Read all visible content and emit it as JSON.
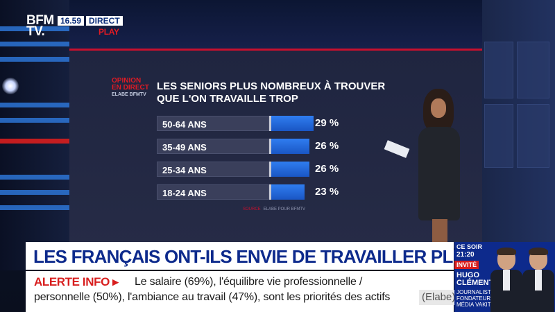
{
  "channel": {
    "logo_line1": "BFM",
    "logo_line2": "TV.",
    "time": "16.59",
    "live_label": "DIRECT",
    "play_label": "PLAY"
  },
  "graphic": {
    "tag_line1": "OPINION",
    "tag_line2": "EN DIRECT",
    "tag_sub": "ELABE BFMTV",
    "title": "LES SENIORS PLUS NOMBREUX À TROUVER QUE L'ON TRAVAILLE TROP",
    "source_label": "SOURCE",
    "source_text": "ELABE POUR BFMTV"
  },
  "chart_data": {
    "type": "bar",
    "title": "LES SENIORS PLUS NOMBREUX À TROUVER QUE L'ON TRAVAILLE TROP",
    "categories": [
      "50-64 ANS",
      "35-49 ANS",
      "25-34 ANS",
      "18-24 ANS"
    ],
    "values": [
      29,
      26,
      26,
      23
    ],
    "value_labels": [
      "29 %",
      "26 %",
      "26 %",
      "23 %"
    ],
    "bar_color": "#2f7df0"
  },
  "headline": {
    "text": "LES FRANÇAIS ONT-ILS ENVIE DE TRAVAILLER PLUS ?"
  },
  "ticker": {
    "badge": "ALERTE INFO ▸",
    "line1": "Le salaire (69%), l'équilibre vie professionnelle /",
    "line2": "personnelle (50%), l'ambiance au travail (47%), sont les priorités des actifs",
    "source": "(Elabe)"
  },
  "promo": {
    "when": "CE SOIR",
    "time": "21:20",
    "badge": "INVITÉ",
    "guest_first": "HUGO",
    "guest_last": "CLÉMENT",
    "guest_role": "JOURNALISTE ET FONDATEUR DU MÉDIA VAKITA"
  },
  "colors": {
    "brand_blue": "#0d2a8c",
    "alert_red": "#d81e1e",
    "bar_blue": "#2f7df0"
  }
}
